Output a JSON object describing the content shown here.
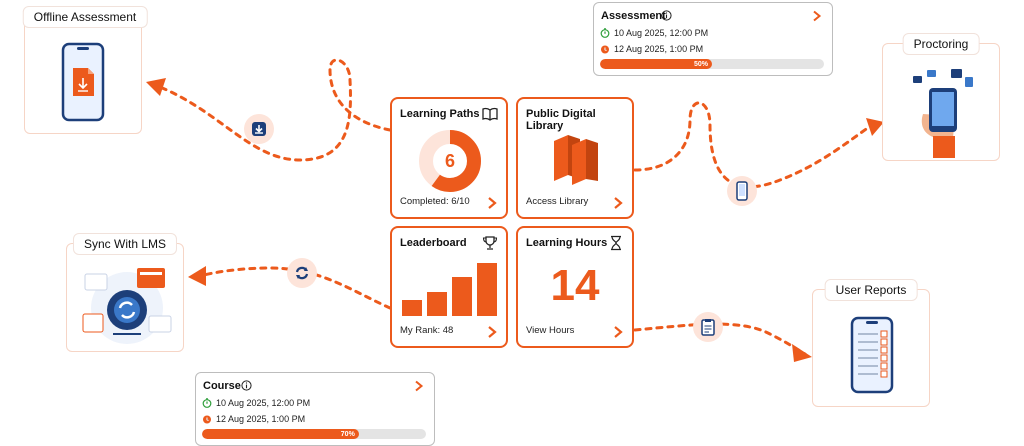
{
  "features": {
    "offline": {
      "title": "Offline Assessment"
    },
    "sync": {
      "title": "Sync With LMS"
    },
    "proctoring": {
      "title": "Proctoring"
    },
    "reports": {
      "title": "User Reports"
    }
  },
  "cards": {
    "learning_paths": {
      "title": "Learning Paths",
      "value": "6",
      "progress": 0.6,
      "footer": "Completed: 6/10"
    },
    "library": {
      "title": "Public Digital Library",
      "footer": "Access Library"
    },
    "leaderboard": {
      "title": "Leaderboard",
      "footer": "My Rank: 48",
      "bars": [
        0.28,
        0.42,
        0.68,
        0.92
      ]
    },
    "hours": {
      "title": "Learning Hours",
      "value": "14",
      "footer": "View Hours"
    }
  },
  "assessment": {
    "title": "Assessment",
    "start": "10 Aug 2025, 12:00 PM",
    "end": "12 Aug 2025, 1:00 PM",
    "progress_label": "50%",
    "progress": 0.5
  },
  "course": {
    "title": "Course",
    "start": "10 Aug 2025, 12:00 PM",
    "end": "12 Aug 2025, 1:00 PM",
    "progress_label": "70%",
    "progress": 0.7
  },
  "colors": {
    "accent": "#ec5a1c",
    "soft": "#fde4da",
    "navy": "#1d3f7a"
  }
}
